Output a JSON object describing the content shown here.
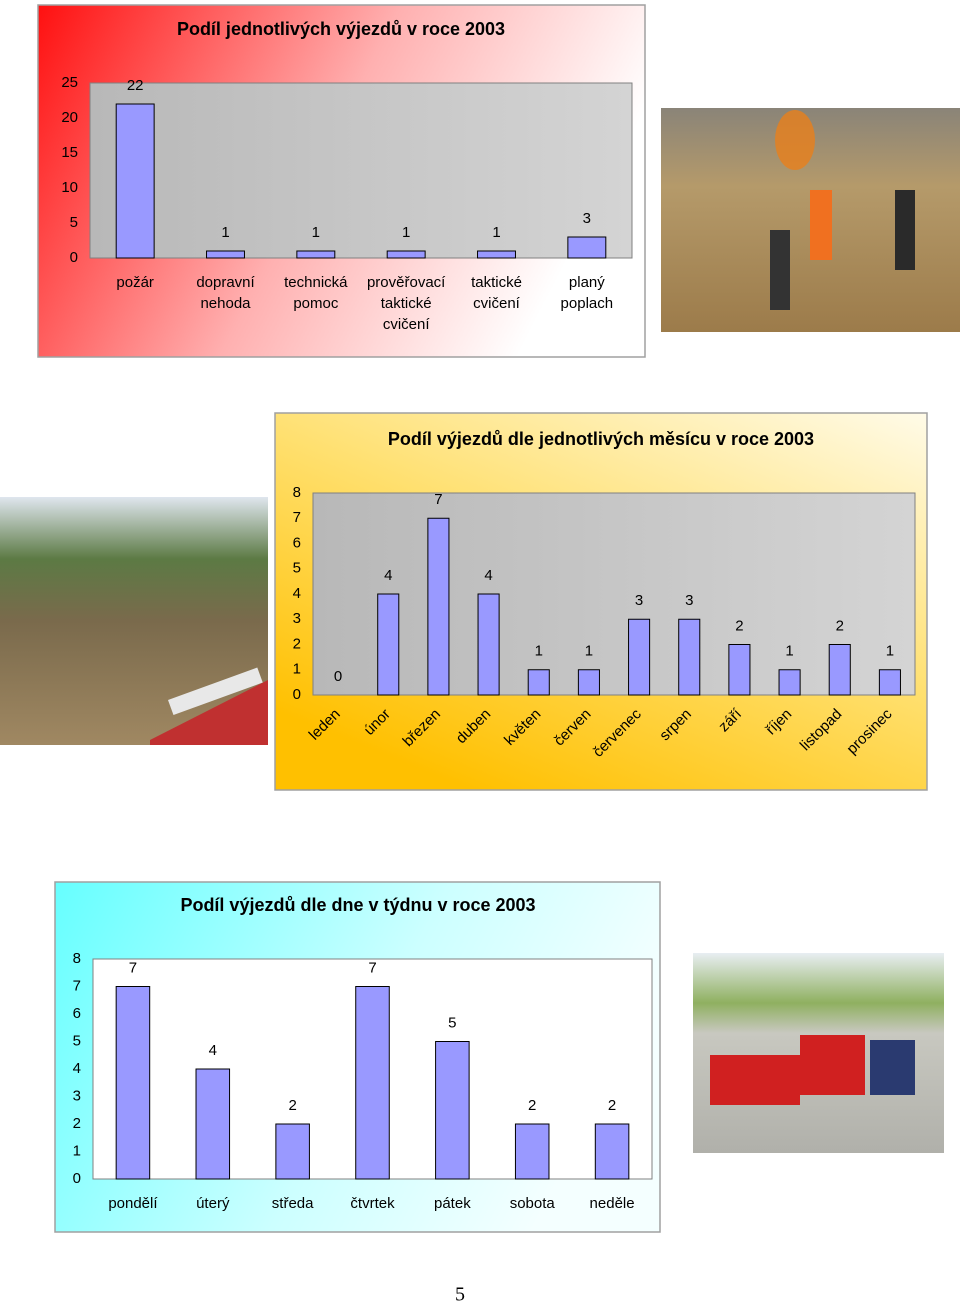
{
  "chart_data": [
    {
      "type": "bar",
      "title": "Podíl jednotlivých výjezdů v roce 2003",
      "categories": [
        "požár",
        "dopravní nehoda",
        "technická pomoc",
        "prověřovací taktické cvičení",
        "taktické cvičení",
        "planý poplach"
      ],
      "values": [
        22,
        1,
        1,
        1,
        1,
        3
      ],
      "color": "#9999ff",
      "ylim": [
        0,
        25
      ],
      "yticks": [
        0,
        5,
        10,
        15,
        20,
        25
      ],
      "grid": false
    },
    {
      "type": "bar",
      "title": "Podíl výjezdů dle jednotlivých měsícu v roce 2003",
      "categories": [
        "leden",
        "únor",
        "březen",
        "duben",
        "květen",
        "červen",
        "červenec",
        "srpen",
        "září",
        "říjen",
        "listopad",
        "prosinec"
      ],
      "values": [
        0,
        4,
        7,
        4,
        1,
        1,
        3,
        3,
        2,
        1,
        2,
        1
      ],
      "color": "#9999ff",
      "ylim": [
        0,
        8
      ],
      "yticks": [
        0,
        1,
        2,
        3,
        4,
        5,
        6,
        7,
        8
      ],
      "grid": false
    },
    {
      "type": "bar",
      "title": "Podíl výjezdů dle dne v týdnu v roce 2003",
      "categories": [
        "pondělí",
        "úterý",
        "středa",
        "čtvrtek",
        "pátek",
        "sobota",
        "neděle"
      ],
      "values": [
        7,
        4,
        2,
        7,
        5,
        2,
        2
      ],
      "color": "#9999ff",
      "ylim": [
        0,
        8
      ],
      "yticks": [
        0,
        1,
        2,
        3,
        4,
        5,
        6,
        7,
        8
      ],
      "grid": false
    }
  ],
  "page_number": "5"
}
